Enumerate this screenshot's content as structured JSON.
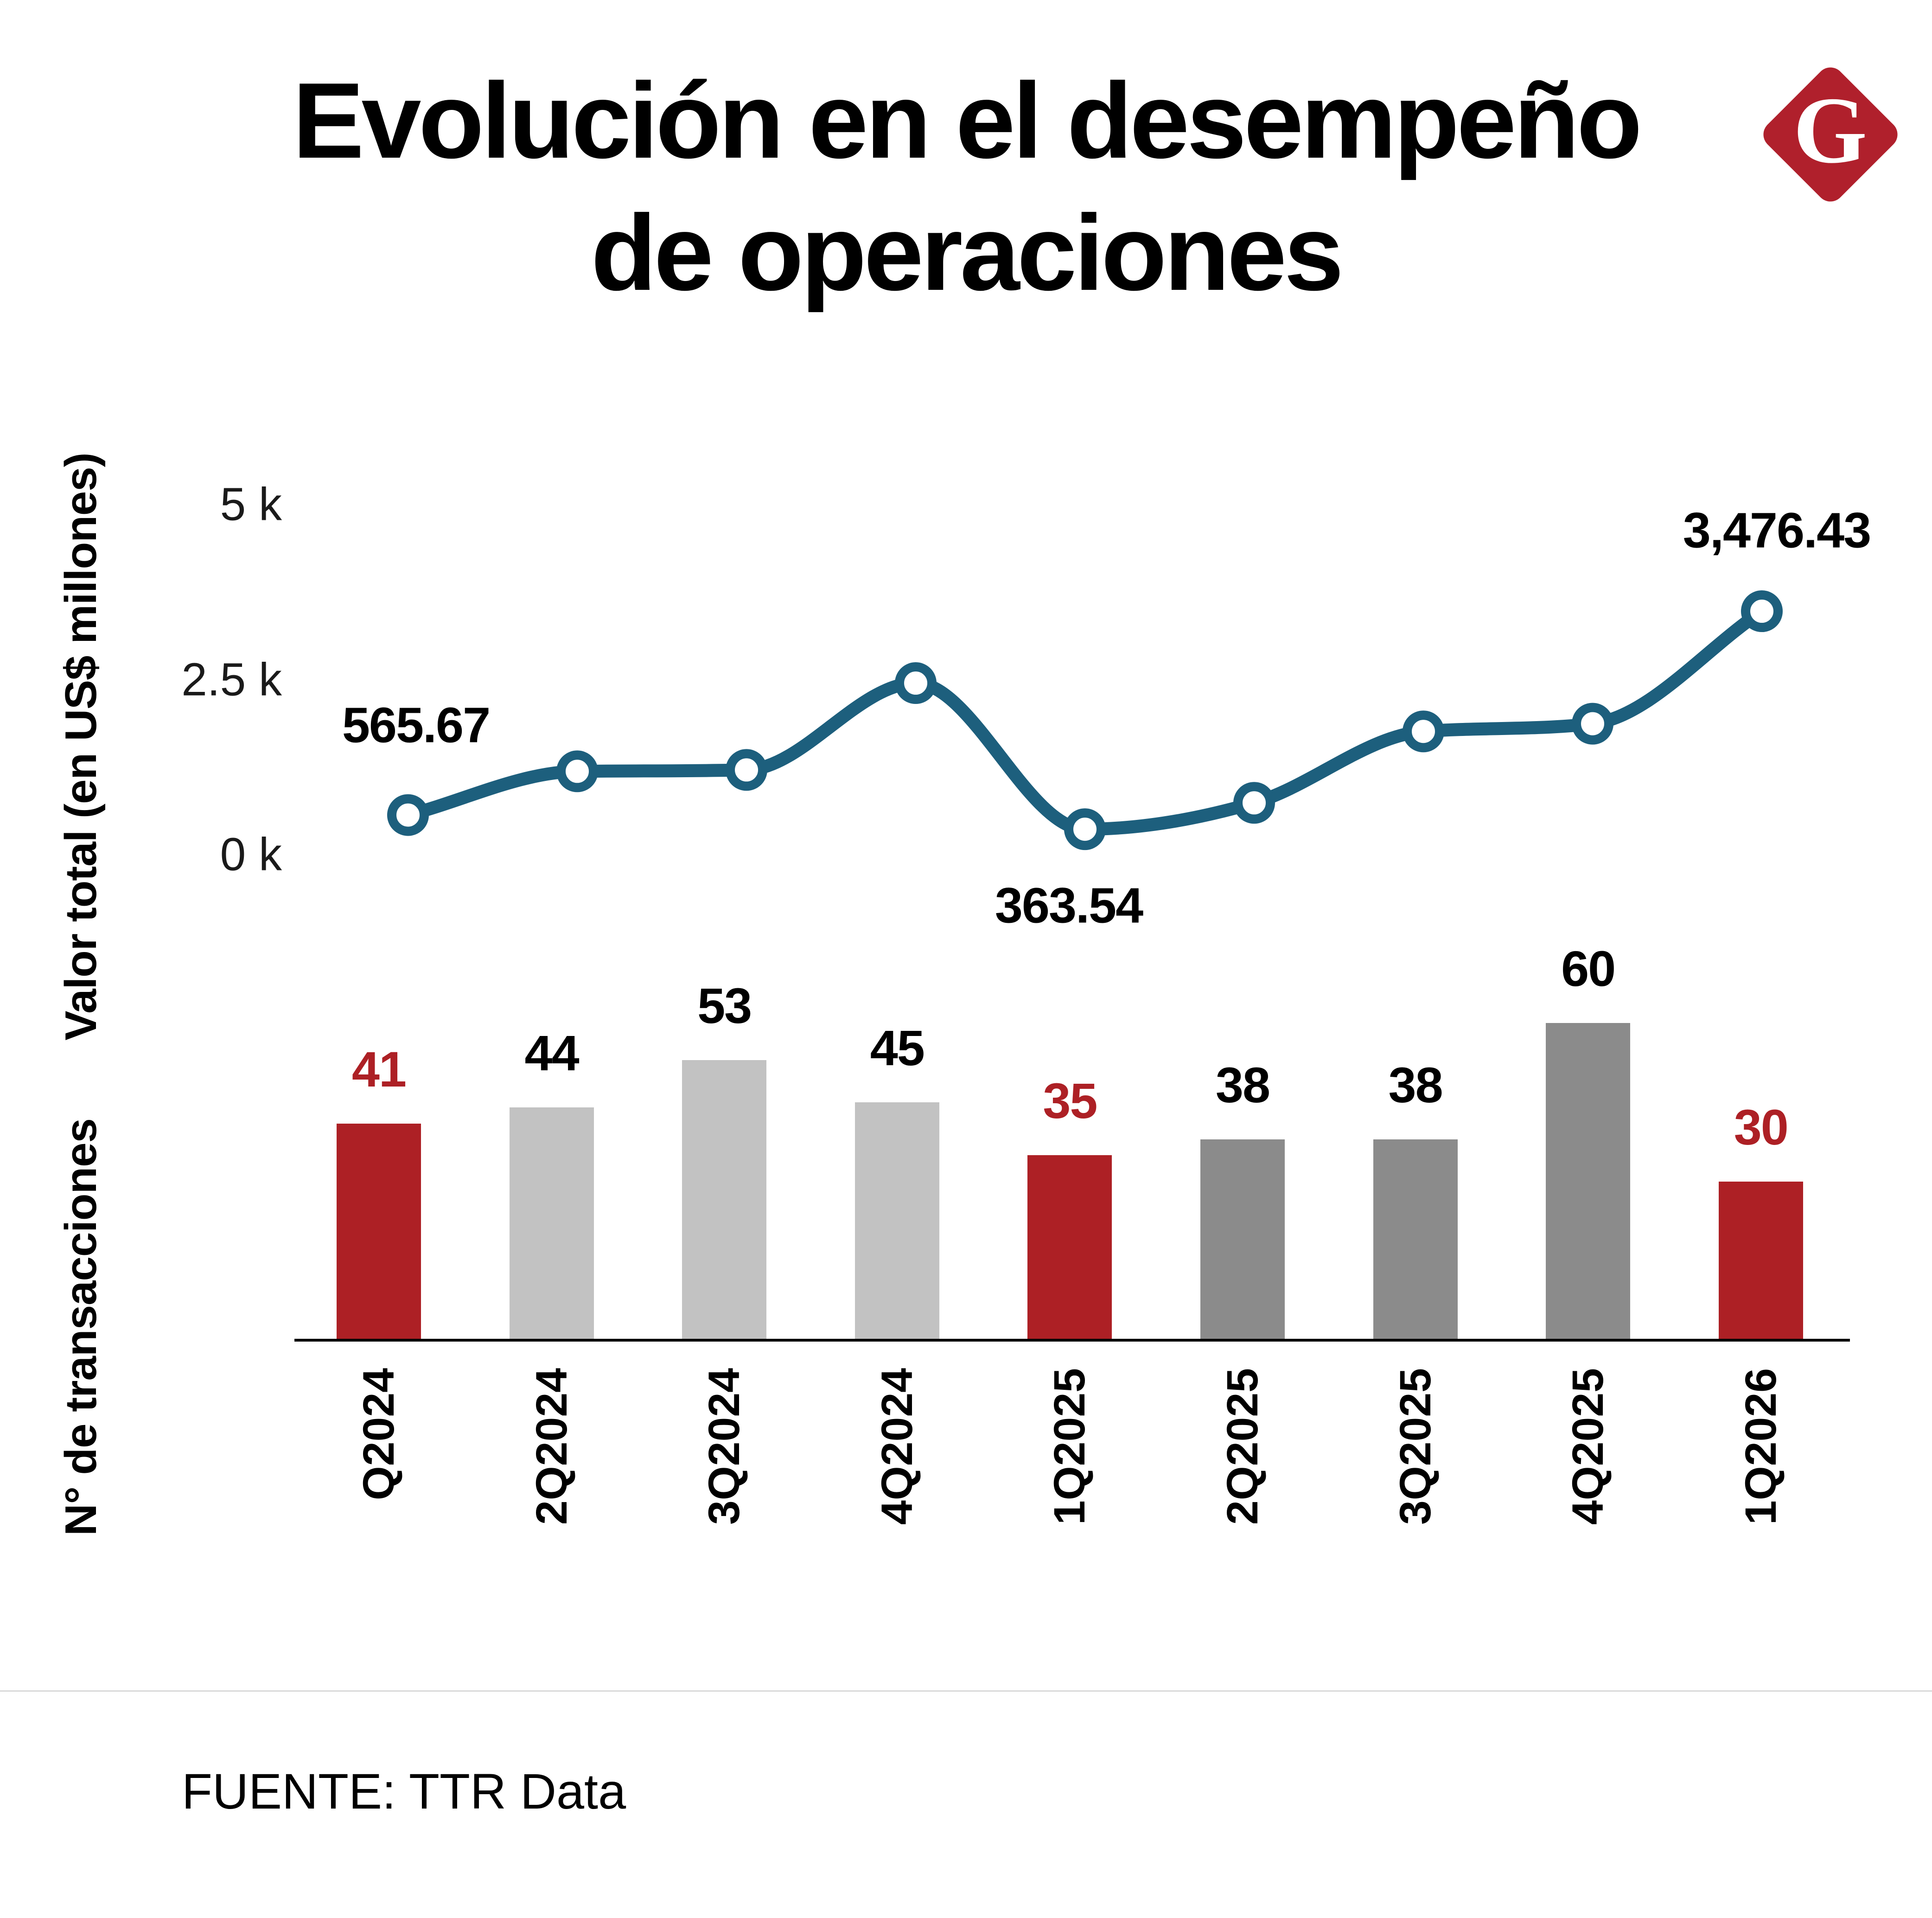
{
  "title": {
    "line1": "Evolución en el desempeño",
    "line2": "de operaciones"
  },
  "logo": {
    "letter": "G",
    "color": "#b0202c"
  },
  "chart_data": {
    "type": "combo (line + bar)",
    "categories": [
      "Q2024",
      "2Q2024",
      "3Q2024",
      "4Q2024",
      "1Q2025",
      "2Q2025",
      "3Q2025",
      "4Q2025",
      "1Q2026"
    ],
    "series": [
      {
        "name": "Valor total (en US$ millones)",
        "type": "line",
        "color": "#1d5f7d",
        "values": [
          565.67,
          1190,
          1210,
          2450,
          363.54,
          740,
          1760,
          1870,
          3476.43
        ],
        "point_labels": [
          {
            "index": 0,
            "text": "565.67"
          },
          {
            "index": 4,
            "text": "363.54"
          },
          {
            "index": 8,
            "text": "3,476.43"
          }
        ]
      },
      {
        "name": "N° de transacciones",
        "type": "bar",
        "values": [
          41,
          44,
          53,
          45,
          35,
          38,
          38,
          60,
          30
        ],
        "bar_colors": [
          "#ad2025",
          "#c2c2c2",
          "#c2c2c2",
          "#c2c2c2",
          "#ad2025",
          "#8b8b8b",
          "#8b8b8b",
          "#8b8b8b",
          "#ad2025"
        ],
        "label_colors": [
          "#ad2025",
          "#000000",
          "#000000",
          "#000000",
          "#ad2025",
          "#000000",
          "#000000",
          "#000000",
          "#ad2025"
        ]
      }
    ],
    "y_axis": {
      "label": "Valor total (en US$ millones)",
      "range": [
        0,
        5000
      ],
      "ticks": [
        {
          "label": "5 k",
          "value": 5000
        },
        {
          "label": "2.5 k",
          "value": 2500
        },
        {
          "label": "0 k",
          "value": 0
        }
      ]
    },
    "bar_axis_label": "N° de transacciones",
    "grid": "off",
    "legend": "none"
  },
  "footer": {
    "source": "FUENTE: TTR Data"
  }
}
